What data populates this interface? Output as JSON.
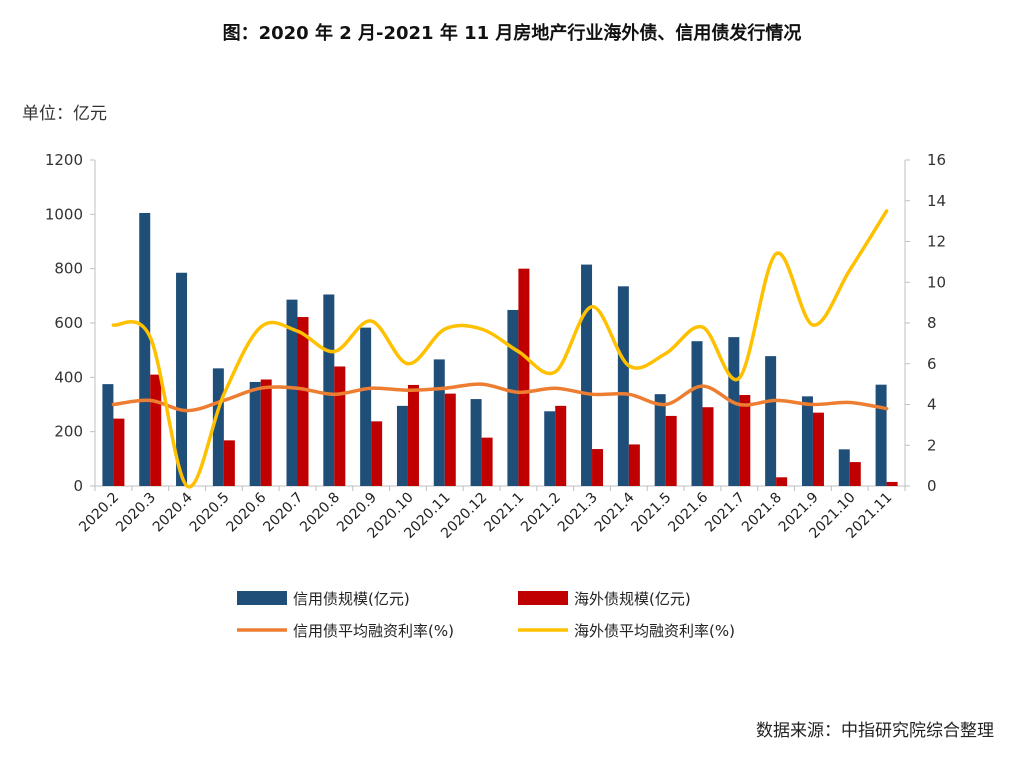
{
  "header": {
    "title": "图：2020 年 2 月-2021 年 11 月房地产行业海外债、信用债发行情况",
    "unit": "单位：亿元"
  },
  "footer": {
    "source": "数据来源：中指研究院综合整理"
  },
  "colors": {
    "credit_bar": "#1f4e79",
    "overseas_bar": "#c00000",
    "credit_rate": "#ed7d31",
    "overseas_rate": "#ffc000",
    "axis": "#bfbfbf"
  },
  "chart_data": {
    "type": "bar",
    "title": "图：2020 年 2 月-2021 年 11 月房地产行业海外债、信用债发行情况",
    "categories": [
      "2020.2",
      "2020.3",
      "2020.4",
      "2020.5",
      "2020.6",
      "2020.7",
      "2020.8",
      "2020.9",
      "2020.10",
      "2020.11",
      "2020.12",
      "2021.1",
      "2021.2",
      "2021.3",
      "2021.4",
      "2021.5",
      "2021.6",
      "2021.7",
      "2021.8",
      "2021.9",
      "2021.10",
      "2021.11"
    ],
    "y_left": {
      "min": 0,
      "max": 1200,
      "ticks": [
        0,
        200,
        400,
        600,
        800,
        1000,
        1200
      ]
    },
    "y_right": {
      "min": 0,
      "max": 16,
      "ticks": [
        0,
        2,
        4,
        6,
        8,
        10,
        12,
        14,
        16
      ]
    },
    "series": [
      {
        "name": "信用债规模(亿元)",
        "kind": "bar",
        "axis": "left",
        "values": [
          375,
          1005,
          785,
          433,
          383,
          686,
          705,
          583,
          295,
          466,
          320,
          648,
          275,
          815,
          735,
          338,
          533,
          548,
          478,
          330,
          135,
          373
        ]
      },
      {
        "name": "海外债规模(亿元)",
        "kind": "bar",
        "axis": "left",
        "values": [
          248,
          410,
          0,
          168,
          392,
          622,
          440,
          238,
          372,
          340,
          178,
          800,
          295,
          136,
          153,
          258,
          290,
          335,
          32,
          270,
          88,
          15
        ]
      },
      {
        "name": "信用债平均融资利率(%)",
        "kind": "line",
        "axis": "right",
        "values": [
          4.0,
          4.2,
          3.7,
          4.2,
          4.8,
          4.8,
          4.5,
          4.8,
          4.7,
          4.8,
          5.0,
          4.6,
          4.8,
          4.5,
          4.5,
          4.0,
          4.9,
          4.0,
          4.2,
          4.0,
          4.1,
          3.8
        ]
      },
      {
        "name": "海外债平均融资利率(%)",
        "kind": "line",
        "axis": "right",
        "values": [
          7.9,
          7.3,
          0.0,
          4.5,
          7.8,
          7.6,
          6.6,
          8.1,
          6.0,
          7.7,
          7.7,
          6.6,
          5.6,
          8.8,
          5.9,
          6.5,
          7.8,
          5.3,
          11.4,
          7.9,
          10.6,
          13.5
        ]
      }
    ],
    "grid": false,
    "legend_position": "bottom"
  }
}
